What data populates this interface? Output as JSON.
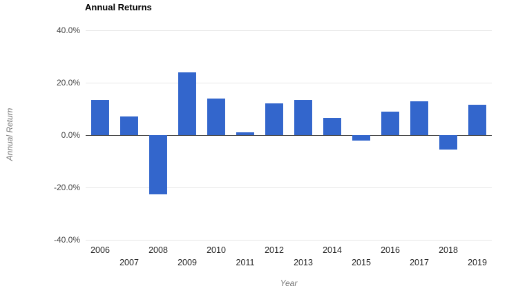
{
  "chart_data": {
    "type": "bar",
    "title": "Annual Returns",
    "xlabel": "Year",
    "ylabel": "Annual Return",
    "categories": [
      "2006",
      "2007",
      "2008",
      "2009",
      "2010",
      "2011",
      "2012",
      "2013",
      "2014",
      "2015",
      "2016",
      "2017",
      "2018",
      "2019"
    ],
    "values": [
      13.5,
      7.0,
      -22.5,
      24.0,
      14.0,
      1.0,
      12.0,
      13.5,
      6.5,
      -2.0,
      9.0,
      13.0,
      -5.5,
      11.5
    ],
    "ylim": [
      -40,
      40
    ],
    "yticks": [
      {
        "value": 40,
        "label": "40.0%"
      },
      {
        "value": 20,
        "label": "20.0%"
      },
      {
        "value": 0,
        "label": "0.0%"
      },
      {
        "value": -20,
        "label": "-20.0%"
      },
      {
        "value": -40,
        "label": "-40.0%"
      }
    ],
    "bar_color": "#3366cc",
    "grid": true,
    "legend": "none",
    "label_stagger": true
  }
}
